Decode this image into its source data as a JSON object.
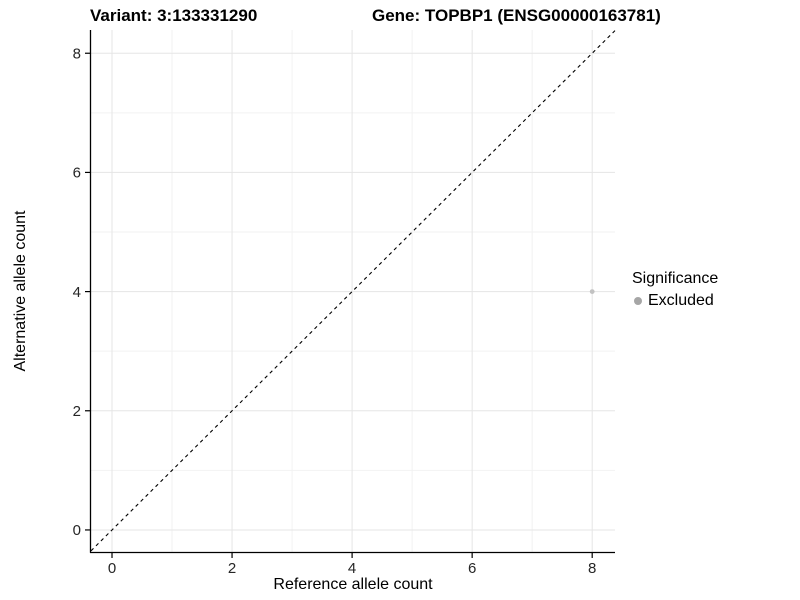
{
  "chart_data": {
    "type": "scatter",
    "titles": {
      "variant": "Variant: 3:133331290",
      "gene": "Gene: TOPBP1 (ENSG00000163781)"
    },
    "xlabel": "Reference allele count",
    "ylabel": "Alternative allele count",
    "xlim": [
      -0.35,
      8.38
    ],
    "ylim": [
      -0.37,
      8.39
    ],
    "x_ticks": [
      0,
      2,
      4,
      6,
      8
    ],
    "y_ticks": [
      0,
      2,
      4,
      6,
      8
    ],
    "x_minor_ticks": [
      1,
      3,
      5,
      7
    ],
    "y_minor_ticks": [
      1,
      3,
      5,
      7
    ],
    "grid": "major and minor gridlines on white panel",
    "identity_line": {
      "slope": 1,
      "intercept": 0,
      "style": "dashed",
      "color": "#000000"
    },
    "series": [
      {
        "name": "Excluded",
        "color": "#c2c2c2",
        "points": [
          {
            "x": 8,
            "y": 4
          }
        ]
      }
    ],
    "legend": {
      "title": "Significance",
      "position": "right",
      "entries": [
        {
          "label": "Excluded",
          "color": "#a6a6a6"
        }
      ]
    },
    "colors": {
      "grid_major": "#e5e5e5",
      "grid_minor": "#f2f2f2",
      "axis_line": "#000000",
      "tick_label": "#262626"
    }
  }
}
